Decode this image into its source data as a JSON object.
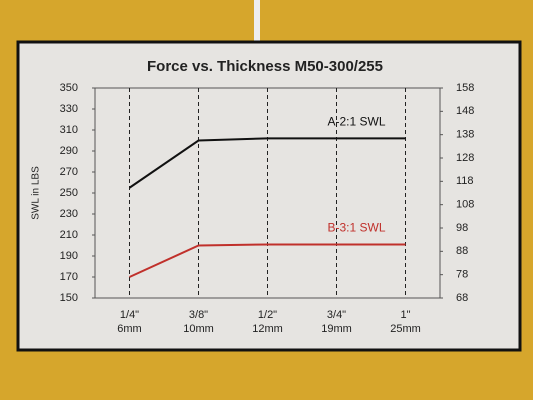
{
  "chart_data": {
    "type": "line",
    "title": "Force vs. Thickness M50-300/255",
    "y_label": "SWL in LBS",
    "categories": [
      "1/4\"\n6mm",
      "3/8\"\n10mm",
      "1/2\"\n12mm",
      "3/4\"\n19mm",
      "1\"\n25mm"
    ],
    "series": [
      {
        "name": "A-2:1 SWL",
        "color": "#111111",
        "values": [
          255,
          300,
          302,
          302,
          302
        ]
      },
      {
        "name": "B-3:1 SWL",
        "color": "#c0302b",
        "values": [
          170,
          200,
          201,
          201,
          201
        ]
      }
    ],
    "ylim": [
      150,
      350
    ],
    "yticks": [
      150,
      170,
      190,
      210,
      230,
      250,
      270,
      290,
      310,
      330,
      350
    ],
    "y2lim": [
      68,
      158
    ],
    "y2ticks": [
      68,
      78,
      88,
      98,
      108,
      118,
      128,
      138,
      148,
      158
    ],
    "grid": true
  }
}
